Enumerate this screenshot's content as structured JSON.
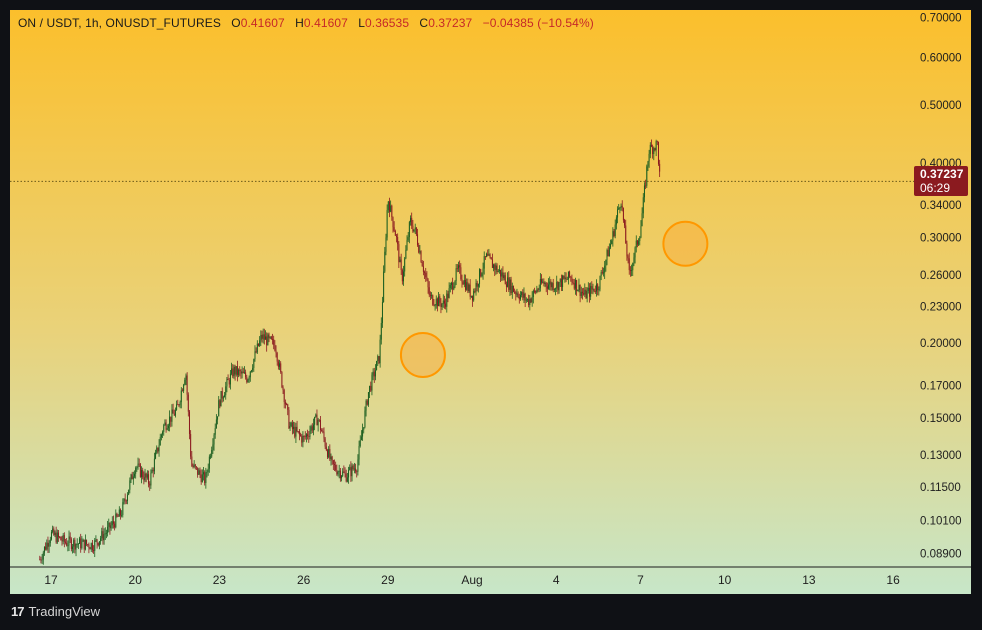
{
  "legend": {
    "symbol": "ON / USDT, 1h, ONUSDT_FUTURES",
    "open_label": "O",
    "open": "0.41607",
    "high_label": "H",
    "high": "0.41607",
    "low_label": "L",
    "low": "0.36535",
    "close_label": "C",
    "close": "0.37237",
    "change": "−0.04385 (−10.54%)"
  },
  "price_tag": {
    "price": "0.37237",
    "countdown": "06:29"
  },
  "brand": {
    "logo": "17",
    "name": "TradingView"
  },
  "colors": {
    "background_top": "#fbbf2c",
    "background_bottom": "#c7e6c8",
    "candle_up": "#1b5e20",
    "candle_down": "#8b1a1f",
    "price_line": "#6b5a1a",
    "circle_stroke": "#ff9800",
    "price_tag_bg": "#8b1a1f",
    "frame": "#0f1115"
  },
  "chart_data": {
    "type": "candlestick",
    "yscale": "log",
    "ylim": [
      0.0845,
      0.72
    ],
    "y_ticks": [
      "0.70000",
      "0.60000",
      "0.50000",
      "0.40000",
      "0.34000",
      "0.30000",
      "0.26000",
      "0.23000",
      "0.20000",
      "0.17000",
      "0.15000",
      "0.13000",
      "0.11500",
      "0.10100",
      "0.08900"
    ],
    "x_ticks": [
      "17",
      "20",
      "23",
      "26",
      "29",
      "Aug",
      "4",
      "7",
      "10",
      "13",
      "16"
    ],
    "last_price": 0.37237,
    "close_path_days": [
      16.6,
      17.0,
      17.5,
      18.5,
      19.0,
      19.5,
      20.0,
      20.5,
      21.0,
      21.5,
      21.8,
      22.0,
      22.5,
      23.0,
      23.5,
      24.0,
      24.5,
      25.0,
      25.5,
      26.0,
      26.5,
      27.0,
      27.5,
      27.9,
      28.3,
      28.7,
      29.0,
      29.3,
      29.5,
      29.8,
      30.0,
      30.5,
      31.0,
      31.5,
      32.0,
      32.5,
      33.0,
      33.5,
      34.0,
      34.5,
      35.0,
      35.5,
      36.0,
      36.5,
      37.0,
      37.3,
      37.6,
      38.0,
      38.3,
      38.6,
      38.7
    ],
    "close_path_values": [
      0.087,
      0.096,
      0.093,
      0.092,
      0.097,
      0.104,
      0.125,
      0.117,
      0.145,
      0.155,
      0.18,
      0.125,
      0.118,
      0.16,
      0.18,
      0.175,
      0.205,
      0.198,
      0.145,
      0.138,
      0.15,
      0.125,
      0.12,
      0.125,
      0.165,
      0.19,
      0.35,
      0.3,
      0.255,
      0.32,
      0.305,
      0.238,
      0.232,
      0.265,
      0.24,
      0.278,
      0.262,
      0.245,
      0.235,
      0.252,
      0.25,
      0.258,
      0.24,
      0.25,
      0.3,
      0.35,
      0.26,
      0.31,
      0.42,
      0.43,
      0.372
    ],
    "annotations": [
      {
        "type": "circle",
        "day": 30.25,
        "value": 0.191
      },
      {
        "type": "circle",
        "day": 39.6,
        "value": 0.293
      }
    ]
  }
}
